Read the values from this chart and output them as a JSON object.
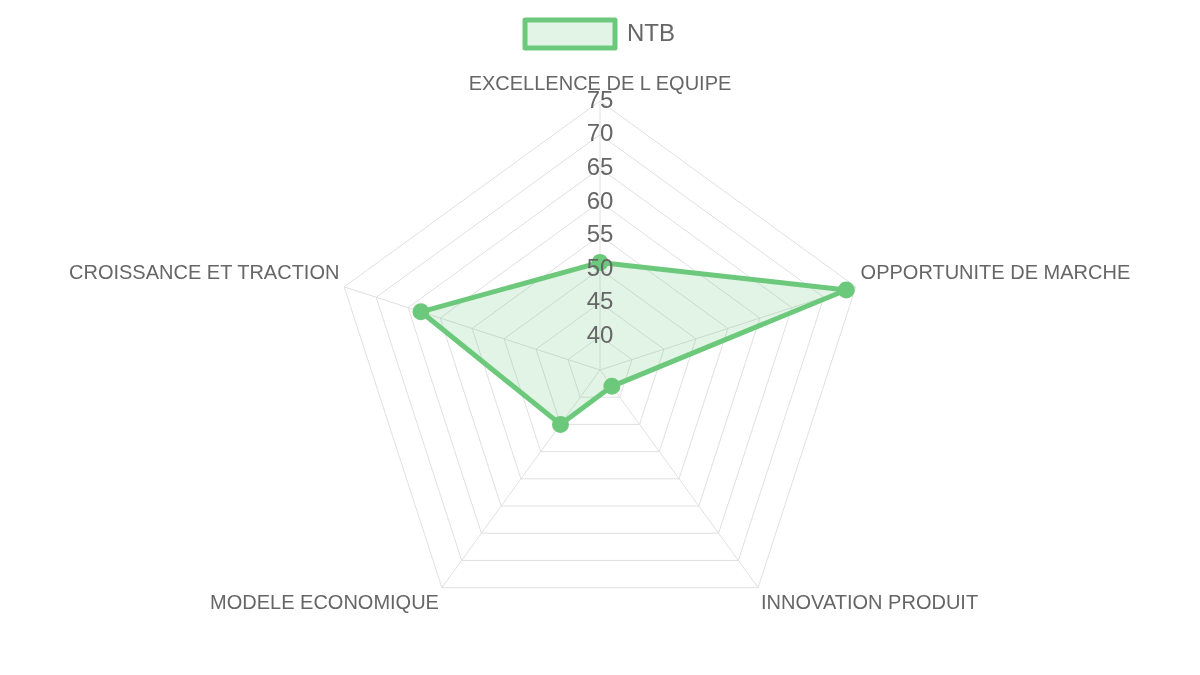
{
  "chart_data": {
    "type": "radar",
    "categories": [
      "EXCELLENCE DE L EQUIPE",
      "OPPORTUNITE DE MARCHE",
      "INNOVATION PRODUIT",
      "MODELE ECONOMIQUE",
      "CROISSANCE ET TRACTION"
    ],
    "series": [
      {
        "name": "NTB",
        "color": "#6cc97c",
        "values": [
          51,
          73.5,
          38,
          45,
          63
        ]
      }
    ],
    "ylim": [
      35,
      75
    ],
    "yticks": [
      40,
      45,
      50,
      55,
      60,
      65,
      70,
      75
    ],
    "legend": "top",
    "marker": "circle",
    "grid": true
  }
}
